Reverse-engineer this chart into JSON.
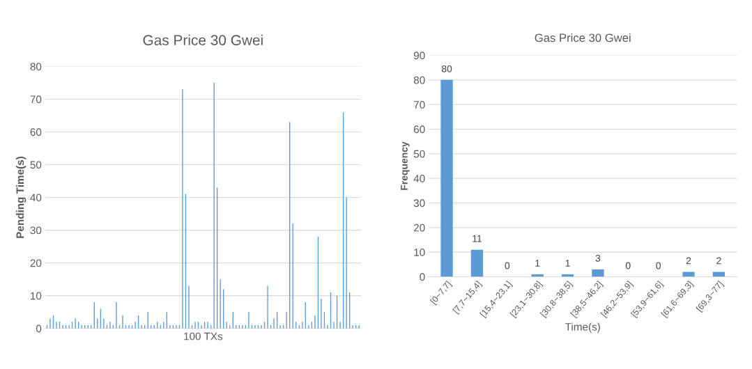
{
  "chart_data": [
    {
      "type": "bar",
      "title": "Gas Price 30 Gwei",
      "xlabel": "100 TXs",
      "ylabel": "Pending Time(s)",
      "categories": [
        null,
        null,
        null,
        null,
        null,
        null,
        null,
        null,
        null,
        null,
        null,
        null,
        null,
        null,
        null,
        null,
        null,
        null,
        null,
        null,
        null,
        null,
        null,
        null,
        null,
        null,
        null,
        null,
        null,
        null,
        null,
        null,
        null,
        null,
        null,
        null,
        null,
        null,
        null,
        null,
        null,
        null,
        null,
        null,
        null,
        null,
        null,
        null,
        null,
        null,
        null,
        null,
        null,
        null,
        null,
        null,
        null,
        null,
        null,
        null,
        null,
        null,
        null,
        null,
        null,
        null,
        null,
        null,
        null,
        null,
        null,
        null,
        null,
        null,
        null,
        null,
        null,
        null,
        null,
        null,
        null,
        null,
        null,
        null,
        null,
        null,
        null,
        null,
        null,
        null,
        null,
        null,
        null,
        null,
        null,
        null,
        null,
        null,
        null,
        null
      ],
      "values": [
        1,
        3,
        4,
        2,
        2,
        1,
        1,
        1,
        2,
        3,
        2,
        1,
        1,
        1,
        1,
        8,
        3,
        6,
        3,
        1,
        2,
        1,
        8,
        1,
        4,
        1,
        1,
        1,
        2,
        4,
        1,
        1,
        5,
        1,
        1,
        2,
        1,
        2,
        5,
        1,
        1,
        1,
        1,
        73,
        41,
        13,
        1,
        2,
        2,
        1,
        2,
        2,
        1,
        75,
        43,
        15,
        12,
        2,
        1,
        5,
        1,
        1,
        1,
        1,
        5,
        1,
        1,
        1,
        1,
        2,
        13,
        1,
        3,
        5,
        1,
        1,
        5,
        63,
        32,
        2,
        1,
        2,
        8,
        1,
        2,
        4,
        28,
        9,
        5,
        1,
        11,
        2,
        10,
        2,
        66,
        40,
        11,
        1,
        1,
        1
      ],
      "color": "#5b9bd5",
      "ylim": [
        0,
        80
      ],
      "yticks": [
        0,
        10,
        20,
        30,
        40,
        50,
        60,
        70,
        80
      ],
      "grid": "y",
      "tick_labels": "y"
    },
    {
      "type": "bar",
      "title": "Gas Price 30 Gwei",
      "xlabel": "Time(s)",
      "ylabel": "Frequency",
      "categories": [
        "[0~7,7]",
        "[7,7~15,4]",
        "[15,4~23,1]",
        "[23,1~30,8]",
        "[30,8~38,5]",
        "[38,5~46,2]",
        "[46,2~53,9]",
        "[53,9~61,6]",
        "[61,6~69,3]",
        "[69,3~77]"
      ],
      "values": [
        80,
        11,
        0,
        1,
        1,
        3,
        0,
        0,
        2,
        2
      ],
      "color": "#5b9bd5",
      "ylim": [
        0,
        90
      ],
      "yticks": [
        0,
        10,
        20,
        30,
        40,
        50,
        60,
        70,
        80,
        90
      ],
      "grid": "y",
      "data_labels": true
    }
  ]
}
